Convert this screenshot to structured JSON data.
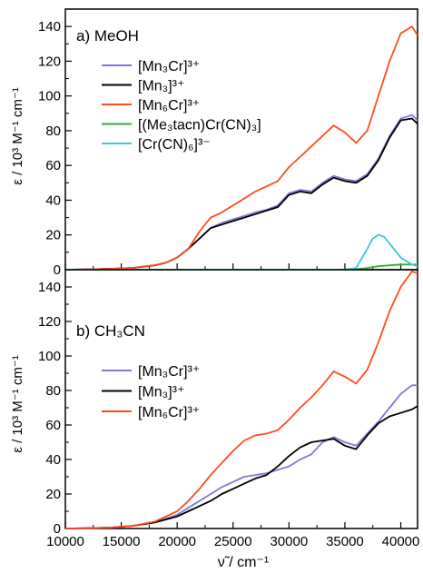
{
  "figure": {
    "x_axis_label": "ν̃ / cm⁻¹",
    "y_axis_label_top": "ε / 10³ M⁻¹ cm⁻¹",
    "y_axis_label_bottom": "ε / 10³ M⁻¹ cm⁻¹"
  },
  "chart_data": [
    {
      "type": "line",
      "title": "a) MeOH",
      "xlabel": "ν̃ / cm⁻¹",
      "ylabel": "ε / 10³ M⁻¹ cm⁻¹",
      "xlim": [
        10000,
        41500
      ],
      "ylim": [
        0,
        150
      ],
      "x_ticks": [
        10000,
        15000,
        20000,
        25000,
        30000,
        35000,
        40000
      ],
      "y_ticks": [
        0,
        20,
        40,
        60,
        80,
        100,
        120,
        140
      ],
      "tick_labels_x_shown": false,
      "legend": "upper-left",
      "series": [
        {
          "name": "[Mn₃Cr]³⁺",
          "color": "#7b7bd6",
          "x": [
            10000,
            12000,
            14000,
            16000,
            18000,
            19000,
            20000,
            21000,
            22000,
            23000,
            24000,
            25000,
            26000,
            27000,
            28000,
            29000,
            30000,
            31000,
            32000,
            33000,
            34000,
            35000,
            36000,
            37000,
            38000,
            39000,
            40000,
            41000,
            41500
          ],
          "y": [
            0,
            0.2,
            0.5,
            1,
            2.5,
            4,
            7,
            12,
            18,
            24,
            27,
            29,
            31,
            33,
            34.5,
            37,
            44,
            46,
            45,
            50,
            54,
            52,
            51,
            55,
            64,
            77,
            87,
            89,
            86
          ]
        },
        {
          "name": "[Mn₃]³⁺",
          "color": "#000000",
          "x": [
            10000,
            12000,
            14000,
            16000,
            18000,
            19000,
            20000,
            21000,
            22000,
            23000,
            24000,
            25000,
            26000,
            27000,
            28000,
            29000,
            30000,
            31000,
            32000,
            33000,
            34000,
            35000,
            36000,
            37000,
            38000,
            39000,
            40000,
            41000,
            41500
          ],
          "y": [
            0,
            0.2,
            0.5,
            1,
            2.5,
            4,
            7,
            12,
            18,
            24,
            26,
            28,
            30,
            32,
            34,
            36,
            43,
            45,
            44,
            49,
            53,
            51,
            50,
            54,
            63,
            76,
            86,
            87,
            84
          ]
        },
        {
          "name": "[Mn₆Cr]³⁺",
          "color": "#ff4a1c",
          "x": [
            10000,
            12000,
            14000,
            16000,
            18000,
            19000,
            20000,
            21000,
            22000,
            23000,
            24000,
            25000,
            26000,
            27000,
            28000,
            29000,
            30000,
            31000,
            32000,
            33000,
            34000,
            35000,
            36000,
            37000,
            38000,
            39000,
            40000,
            41000,
            41500
          ],
          "y": [
            0,
            0.2,
            0.5,
            1,
            2.5,
            4,
            7,
            12,
            22,
            30,
            33,
            37,
            41,
            45,
            48,
            51,
            59,
            65,
            71,
            77,
            83,
            79,
            73,
            80,
            100,
            120,
            136,
            140,
            135
          ]
        },
        {
          "name": "[(Me₃tacn)Cr(CN)₃]",
          "color": "#3aaa3a",
          "x": [
            10000,
            20000,
            30000,
            34000,
            36000,
            37000,
            38000,
            39000,
            40000,
            41000,
            41500
          ],
          "y": [
            0,
            0,
            0,
            0,
            0.3,
            1,
            2,
            2.5,
            3,
            3,
            3
          ]
        },
        {
          "name": "[Cr(CN)₆]³⁻",
          "color": "#3cc6d6",
          "x": [
            10000,
            30000,
            35000,
            36000,
            37000,
            37500,
            38000,
            38500,
            39000,
            40000,
            41000,
            41500
          ],
          "y": [
            0,
            0,
            0,
            1,
            12,
            18,
            20,
            19,
            15,
            7,
            3,
            2
          ]
        }
      ]
    },
    {
      "type": "line",
      "title": "b) CH₃CN",
      "xlabel": "ν̃ / cm⁻¹",
      "ylabel": "ε / 10³ M⁻¹ cm⁻¹",
      "xlim": [
        10000,
        41500
      ],
      "ylim": [
        0,
        150
      ],
      "x_ticks": [
        10000,
        15000,
        20000,
        25000,
        30000,
        35000,
        40000
      ],
      "y_ticks": [
        0,
        20,
        40,
        60,
        80,
        100,
        120,
        140
      ],
      "legend": "upper-left",
      "series": [
        {
          "name": "[Mn₃Cr]³⁺",
          "color": "#7b7bd6",
          "x": [
            10000,
            12000,
            14000,
            16000,
            18000,
            20000,
            21000,
            22000,
            23000,
            24000,
            25000,
            26000,
            27000,
            28000,
            29000,
            30000,
            31000,
            32000,
            33000,
            34000,
            35000,
            36000,
            37000,
            38000,
            39000,
            40000,
            41000,
            41500
          ],
          "y": [
            0,
            0.2,
            0.5,
            1.5,
            3.5,
            8,
            12,
            16,
            20,
            24,
            27,
            30,
            31,
            32,
            34,
            36,
            40,
            43,
            50,
            53,
            50,
            48,
            55,
            62,
            70,
            78,
            83,
            83
          ]
        },
        {
          "name": "[Mn₃]³⁺",
          "color": "#000000",
          "x": [
            10000,
            12000,
            14000,
            16000,
            18000,
            20000,
            21000,
            22000,
            23000,
            24000,
            25000,
            26000,
            27000,
            28000,
            29000,
            30000,
            31000,
            32000,
            33000,
            34000,
            35000,
            36000,
            37000,
            38000,
            39000,
            40000,
            41000,
            41500
          ],
          "y": [
            0,
            0.2,
            0.5,
            1.5,
            3.5,
            7,
            10,
            13,
            16,
            20,
            23,
            26,
            29,
            31,
            36,
            42,
            47,
            50,
            51,
            52,
            48,
            46,
            54,
            61,
            65,
            67,
            69,
            71
          ]
        },
        {
          "name": "[Mn₆Cr]³⁺",
          "color": "#ff4a1c",
          "x": [
            10000,
            12000,
            14000,
            16000,
            18000,
            20000,
            21000,
            22000,
            23000,
            24000,
            25000,
            26000,
            27000,
            28000,
            29000,
            30000,
            31000,
            32000,
            33000,
            34000,
            35000,
            36000,
            37000,
            38000,
            39000,
            40000,
            41000,
            41500
          ],
          "y": [
            0,
            0.2,
            0.5,
            1.5,
            4,
            10,
            16,
            23,
            31,
            38,
            45,
            51,
            54,
            55,
            57,
            63,
            70,
            76,
            83,
            91,
            88,
            84,
            92,
            108,
            126,
            140,
            149,
            148
          ]
        }
      ]
    }
  ]
}
